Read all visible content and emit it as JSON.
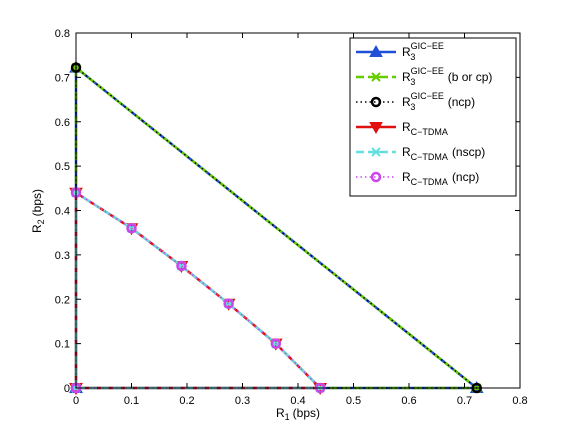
{
  "chart_data": {
    "type": "line",
    "title": "",
    "xlabel": "R",
    "xlabel_sub": "1",
    "xlabel_unit": "(bps)",
    "ylabel": "R",
    "ylabel_sub": "2",
    "ylabel_unit": "(bps)",
    "xlim": [
      0,
      0.8
    ],
    "ylim": [
      0,
      0.8
    ],
    "xticks": [
      "0",
      "0.1",
      "0.2",
      "0.3",
      "0.4",
      "0.5",
      "0.6",
      "0.7",
      "0.8"
    ],
    "yticks": [
      "0",
      "0.1",
      "0.2",
      "0.3",
      "0.4",
      "0.5",
      "0.6",
      "0.7",
      "0.8"
    ],
    "grid": false,
    "legend_position": "top-right",
    "series": [
      {
        "name_main": "R",
        "name_sub": "3",
        "name_sup": "GIC−EE",
        "name_suffix": "",
        "color": "#1f4fd6",
        "style": "solid",
        "marker": "triangle-up",
        "width": 2.5,
        "x": [
          0,
          0,
          0.722,
          0
        ],
        "y": [
          0,
          0.722,
          0,
          0
        ]
      },
      {
        "name_main": "R",
        "name_sub": "3",
        "name_sup": "GIC−EE",
        "name_suffix": "(b or cp)",
        "color": "#66cc00",
        "style": "dashed",
        "marker": "x-star",
        "width": 2.5,
        "x": [
          0,
          0,
          0.722,
          0
        ],
        "y": [
          0,
          0.722,
          0,
          0
        ]
      },
      {
        "name_main": "R",
        "name_sub": "3",
        "name_sup": "GIC−EE",
        "name_suffix": "(ncp)",
        "color": "#000000",
        "style": "dotted",
        "marker": "circle",
        "width": 1.5,
        "x": [
          0,
          0,
          0.722,
          0
        ],
        "y": [
          0,
          0.722,
          0,
          0
        ]
      },
      {
        "name_main": "R",
        "name_sub": "C−TDMA",
        "name_sup": "",
        "name_suffix": "",
        "color": "#e01010",
        "style": "solid",
        "marker": "triangle-down",
        "width": 2.5,
        "x": [
          0,
          0,
          0.1,
          0.19,
          0.275,
          0.36,
          0.44,
          0
        ],
        "y": [
          0,
          0.44,
          0.36,
          0.275,
          0.19,
          0.1,
          0,
          0
        ]
      },
      {
        "name_main": "R",
        "name_sub": "C−TDMA",
        "name_sup": "",
        "name_suffix": "(nscp)",
        "color": "#66dddd",
        "style": "dashed",
        "marker": "x-star",
        "width": 2.5,
        "x": [
          0,
          0,
          0.1,
          0.19,
          0.275,
          0.36,
          0.44,
          0
        ],
        "y": [
          0,
          0.44,
          0.36,
          0.275,
          0.19,
          0.1,
          0,
          0
        ]
      },
      {
        "name_main": "R",
        "name_sub": "C−TDMA",
        "name_sup": "",
        "name_suffix": "(ncp)",
        "color": "#cc44ee",
        "style": "dotted",
        "marker": "circle",
        "width": 1.5,
        "x": [
          0,
          0,
          0.1,
          0.19,
          0.275,
          0.36,
          0.44,
          0
        ],
        "y": [
          0,
          0.44,
          0.36,
          0.275,
          0.19,
          0.1,
          0,
          0
        ]
      }
    ]
  }
}
